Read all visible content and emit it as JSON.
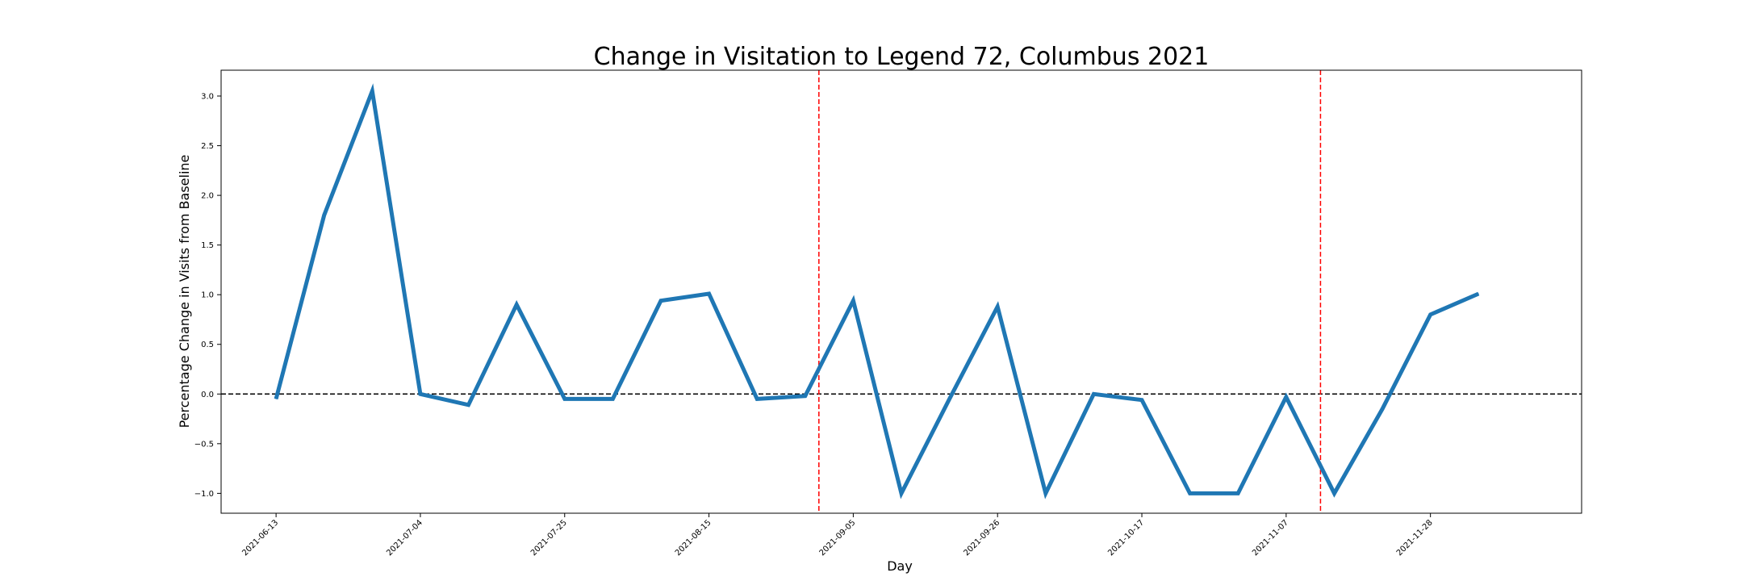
{
  "chart_data": {
    "type": "line",
    "title": "Change in Visitation to Legend 72, Columbus 2021",
    "xlabel": "Day",
    "ylabel": "Percentage Change in Visits from Baseline",
    "x_tick_labels": [
      "2021-06-13",
      "2021-07-04",
      "2021-07-25",
      "2021-08-15",
      "2021-09-05",
      "2021-09-26",
      "2021-10-17",
      "2021-11-07",
      "2021-11-28"
    ],
    "y_tick_labels": [
      "3.0",
      "2.5",
      "2.0",
      "1.5",
      "1.0",
      "0.5",
      "0.0",
      "−0.5",
      "−1.0"
    ],
    "y_ticks": [
      3.0,
      2.5,
      2.0,
      1.5,
      1.0,
      0.5,
      0.0,
      -0.5,
      -1.0
    ],
    "xlim": [
      "2021-06-05",
      "2021-12-20"
    ],
    "ylim": [
      -1.2,
      3.26
    ],
    "grid": false,
    "series": [
      {
        "color": "#1f77b4",
        "x": [
          "2021-06-13",
          "2021-06-20",
          "2021-06-27",
          "2021-07-04",
          "2021-07-11",
          "2021-07-18",
          "2021-07-25",
          "2021-08-01",
          "2021-08-08",
          "2021-08-15",
          "2021-08-22",
          "2021-08-29",
          "2021-09-05",
          "2021-09-12",
          "2021-09-19",
          "2021-09-26",
          "2021-10-03",
          "2021-10-10",
          "2021-10-17",
          "2021-10-24",
          "2021-10-31",
          "2021-11-07",
          "2021-11-14",
          "2021-11-21",
          "2021-11-28",
          "2021-12-05"
        ],
        "values": [
          -0.05,
          1.8,
          3.05,
          0.0,
          -0.11,
          0.9,
          -0.05,
          -0.05,
          0.94,
          1.01,
          -0.05,
          -0.02,
          0.94,
          -1.0,
          -0.05,
          0.88,
          -1.0,
          0.0,
          -0.06,
          -1.0,
          -1.0,
          -0.03,
          -1.0,
          -0.15,
          0.8,
          1.01
        ]
      }
    ],
    "reference_lines": [
      {
        "orientation": "horizontal",
        "value": 0.0,
        "style": "dashed",
        "color": "#000000"
      },
      {
        "orientation": "vertical",
        "value": "2021-08-31",
        "style": "dashed",
        "color": "#ff0000"
      },
      {
        "orientation": "vertical",
        "value": "2021-11-12",
        "style": "dashed",
        "color": "#ff0000"
      }
    ]
  }
}
